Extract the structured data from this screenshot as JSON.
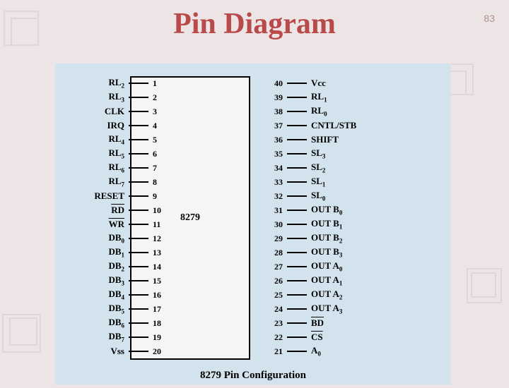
{
  "page_number": "83",
  "title": "Pin Diagram",
  "chip_label": "8279",
  "caption": "8279 Pin Configuration",
  "background_color": "#ede4e6",
  "diagram_bg": "#d3e3ed",
  "title_color": "#b84a4a",
  "chip_bg": "#f5f5f5",
  "pin_count": 40,
  "row_spacing": 20,
  "left_pins": [
    {
      "num": "1",
      "label": "RL",
      "sub": "2",
      "overline": false
    },
    {
      "num": "2",
      "label": "RL",
      "sub": "3",
      "overline": false
    },
    {
      "num": "3",
      "label": "CLK",
      "sub": "",
      "overline": false
    },
    {
      "num": "4",
      "label": "IRQ",
      "sub": "",
      "overline": false
    },
    {
      "num": "5",
      "label": "RL",
      "sub": "4",
      "overline": false
    },
    {
      "num": "6",
      "label": "RL",
      "sub": "5",
      "overline": false
    },
    {
      "num": "7",
      "label": "RL",
      "sub": "6",
      "overline": false
    },
    {
      "num": "8",
      "label": "RL",
      "sub": "7",
      "overline": false
    },
    {
      "num": "9",
      "label": "RESET",
      "sub": "",
      "overline": false
    },
    {
      "num": "10",
      "label": "RD",
      "sub": "",
      "overline": true
    },
    {
      "num": "11",
      "label": "WR",
      "sub": "",
      "overline": true
    },
    {
      "num": "12",
      "label": "DB",
      "sub": "0",
      "overline": false
    },
    {
      "num": "13",
      "label": "DB",
      "sub": "1",
      "overline": false
    },
    {
      "num": "14",
      "label": "DB",
      "sub": "2",
      "overline": false
    },
    {
      "num": "15",
      "label": "DB",
      "sub": "3",
      "overline": false
    },
    {
      "num": "16",
      "label": "DB",
      "sub": "4",
      "overline": false
    },
    {
      "num": "17",
      "label": "DB",
      "sub": "5",
      "overline": false
    },
    {
      "num": "18",
      "label": "DB",
      "sub": "6",
      "overline": false
    },
    {
      "num": "19",
      "label": "DB",
      "sub": "7",
      "overline": false
    },
    {
      "num": "20",
      "label": "Vss",
      "sub": "",
      "overline": false
    }
  ],
  "right_pins": [
    {
      "num": "40",
      "label": "Vcc",
      "sub": "",
      "overline": false
    },
    {
      "num": "39",
      "label": "RL",
      "sub": "1",
      "overline": false
    },
    {
      "num": "38",
      "label": "RL",
      "sub": "0",
      "overline": false
    },
    {
      "num": "37",
      "label": "CNTL/STB",
      "sub": "",
      "overline": false
    },
    {
      "num": "36",
      "label": "SHIFT",
      "sub": "",
      "overline": false
    },
    {
      "num": "35",
      "label": "SL",
      "sub": "3",
      "overline": false
    },
    {
      "num": "34",
      "label": "SL",
      "sub": "2",
      "overline": false
    },
    {
      "num": "33",
      "label": "SL",
      "sub": "1",
      "overline": false
    },
    {
      "num": "32",
      "label": "SL",
      "sub": "0",
      "overline": false
    },
    {
      "num": "31",
      "label": "OUT B",
      "sub": "0",
      "overline": false
    },
    {
      "num": "30",
      "label": "OUT B",
      "sub": "1",
      "overline": false
    },
    {
      "num": "29",
      "label": "OUT B",
      "sub": "2",
      "overline": false
    },
    {
      "num": "28",
      "label": "OUT B",
      "sub": "3",
      "overline": false
    },
    {
      "num": "27",
      "label": "OUT A",
      "sub": "0",
      "overline": false
    },
    {
      "num": "26",
      "label": "OUT A",
      "sub": "1",
      "overline": false
    },
    {
      "num": "25",
      "label": "OUT A",
      "sub": "2",
      "overline": false
    },
    {
      "num": "24",
      "label": "OUT A",
      "sub": "3",
      "overline": false
    },
    {
      "num": "23",
      "label": "BD",
      "sub": "",
      "overline": true
    },
    {
      "num": "22",
      "label": "CS",
      "sub": "",
      "overline": true
    },
    {
      "num": "21",
      "label": "A",
      "sub": "0",
      "overline": false
    }
  ]
}
